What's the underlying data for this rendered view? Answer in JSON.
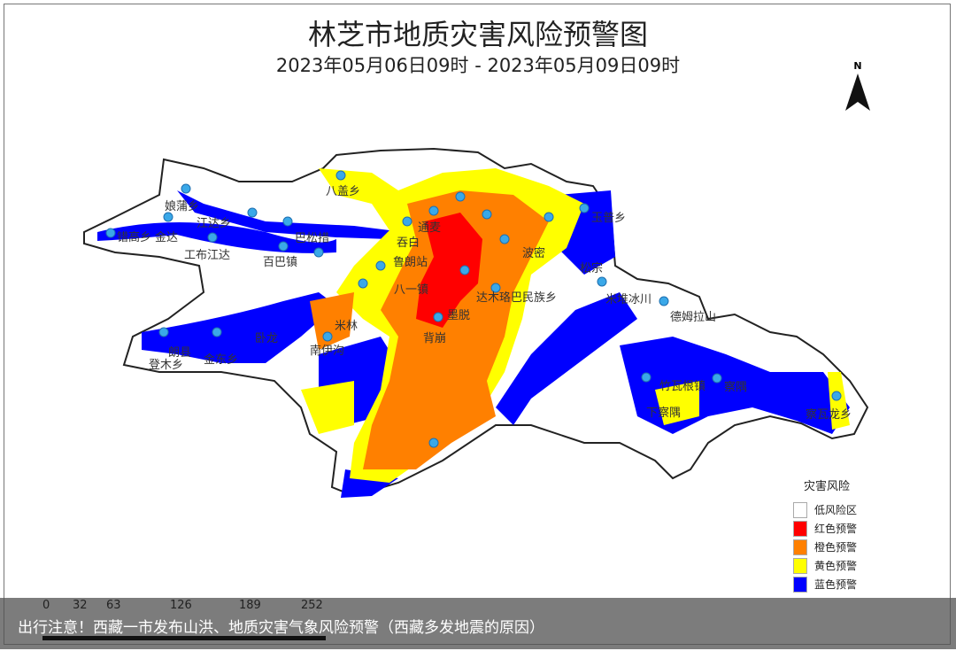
{
  "map": {
    "title": "林芝市地质灾害风险预警图",
    "subtitle": "2023年05月06日09时 - 2023年05月09日09时",
    "north_label": "N",
    "places": [
      "八盖乡",
      "娘蒲乡",
      "江达乡",
      "错高乡",
      "金达",
      "工布江达",
      "百巴镇",
      "巴松措",
      "通麦",
      "吞白",
      "鲁朗站",
      "八一镇",
      "米林",
      "卧龙",
      "南伊沟",
      "朗县",
      "金东乡",
      "登木乡",
      "背崩",
      "墨脱",
      "达木珞巴民族乡",
      "波密",
      "松宗",
      "玉普乡",
      "米堆冰川",
      "德姆拉山",
      "竹瓦根镇",
      "下察隅",
      "察隅",
      "察瓦龙乡"
    ],
    "legend": {
      "title": "灾害风险",
      "items": [
        {
          "label": "低风险区",
          "color": "#ffffff"
        },
        {
          "label": "红色预警",
          "color": "#ff0000"
        },
        {
          "label": "橙色预警",
          "color": "#ff8000"
        },
        {
          "label": "黄色预警",
          "color": "#ffff00"
        },
        {
          "label": "蓝色预警",
          "color": "#0000ff"
        }
      ]
    },
    "scale_ticks": [
      "0",
      "32",
      "63",
      "126",
      "189",
      "252"
    ]
  },
  "caption": "出行注意！西藏一市发布山洪、地质灾害气象风险预警（西藏多发地震的原因）"
}
